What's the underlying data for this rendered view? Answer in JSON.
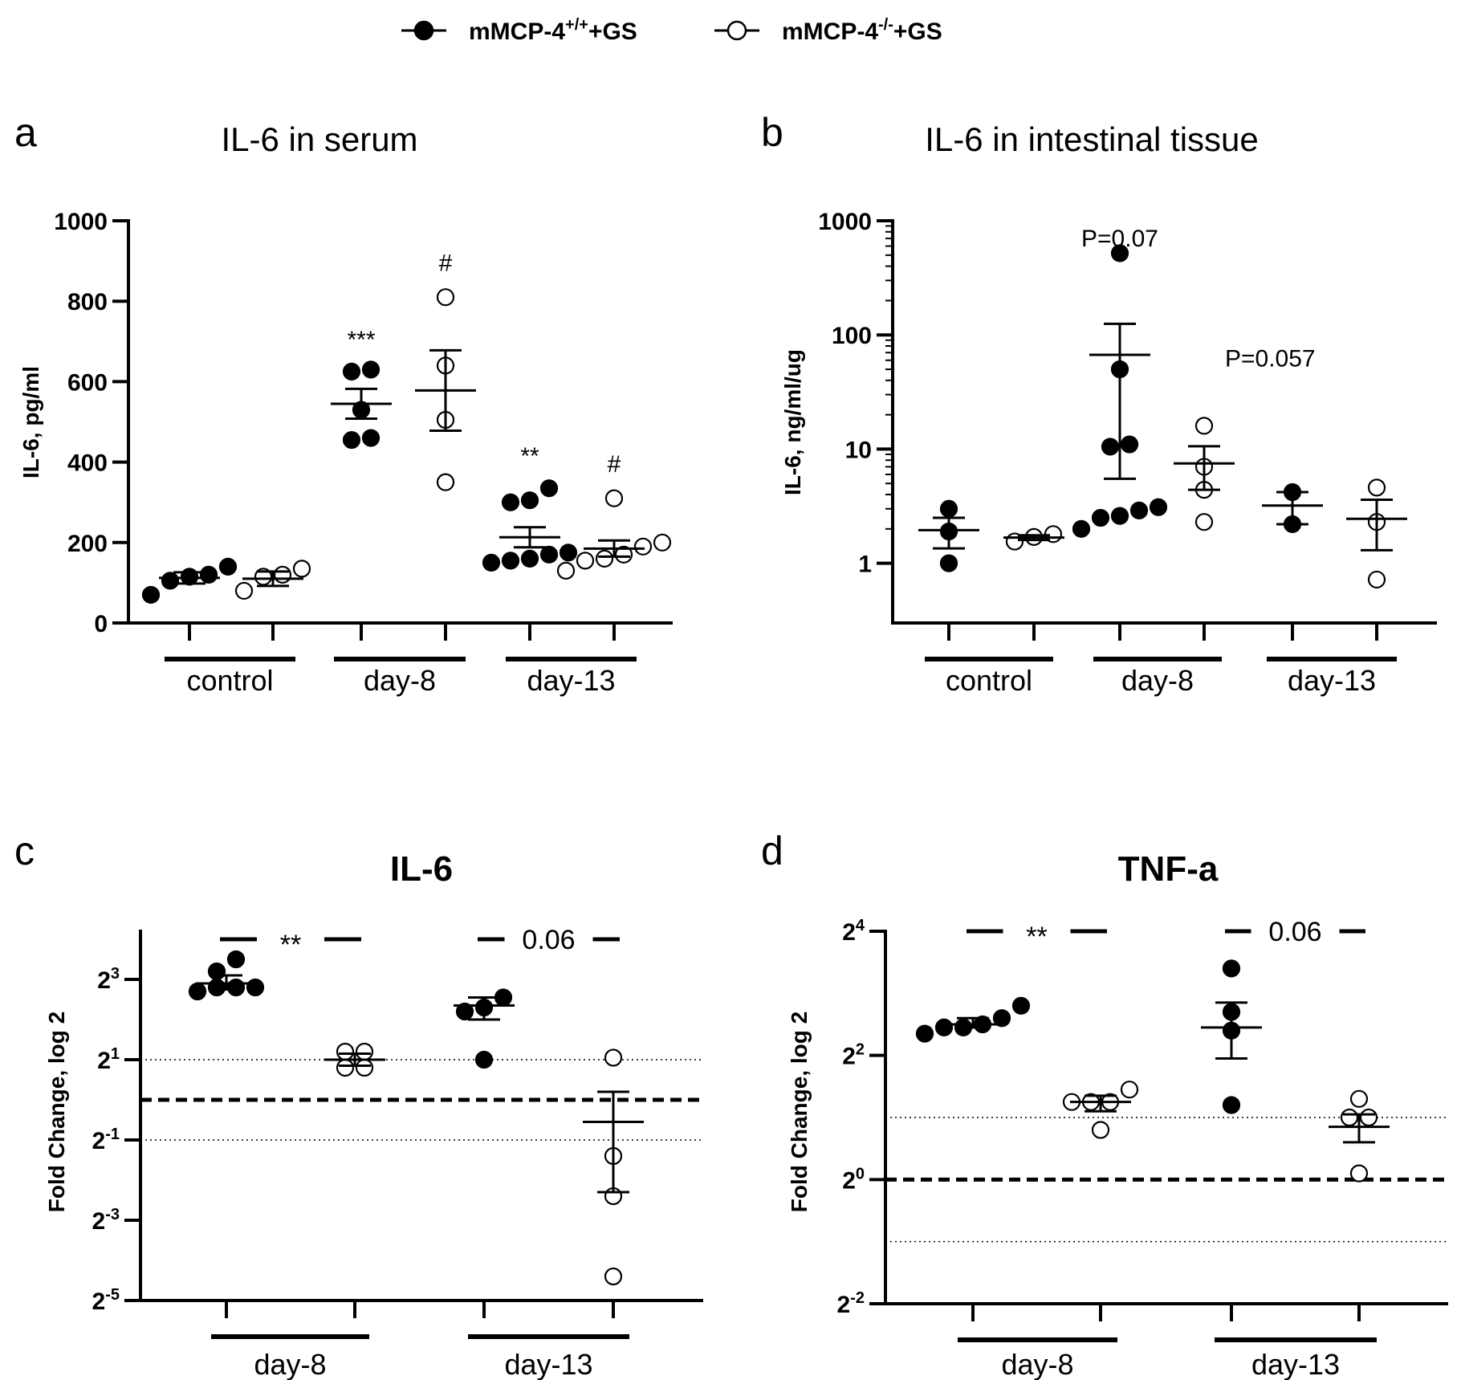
{
  "legend": [
    {
      "name": "mMCP-4",
      "sup": "+/+",
      "suffix": "+GS",
      "marker": "filled"
    },
    {
      "name": "mMCP-4",
      "sup": "-/-",
      "suffix": "+GS",
      "marker": "open"
    }
  ],
  "colors": {
    "ink": "#000000",
    "background": "#ffffff"
  },
  "chart_data": [
    {
      "type": "scatter",
      "panel_letter": "a",
      "title": "IL-6 in serum",
      "title_bold": false,
      "ylabel": "IL-6, pg/ml",
      "yscale": "linear",
      "ylim": [
        0,
        1000
      ],
      "yticks": [
        {
          "v": 0,
          "label": "0"
        },
        {
          "v": 200,
          "label": "200"
        },
        {
          "v": 400,
          "label": "400"
        },
        {
          "v": 600,
          "label": "600"
        },
        {
          "v": 800,
          "label": "800"
        },
        {
          "v": 1000,
          "label": "1000"
        }
      ],
      "groups": [
        "control",
        "day-8",
        "day-13"
      ],
      "series": [
        {
          "name": "mMCP-4+/+ +GS",
          "marker": "filled",
          "columns": [
            {
              "group": "control",
              "points": [
                70,
                105,
                115,
                120,
                140
              ],
              "mean": 112,
              "sem_low": 98,
              "sem_high": 126
            },
            {
              "group": "day-8",
              "points": [
                455,
                460,
                530,
                625,
                630
              ],
              "mean": 545,
              "sem_low": 508,
              "sem_high": 582
            },
            {
              "group": "day-13",
              "points": [
                150,
                155,
                160,
                170,
                175,
                300,
                305,
                335
              ],
              "mean": 213,
              "sem_low": 188,
              "sem_high": 238
            }
          ]
        },
        {
          "name": "mMCP-4-/- +GS",
          "marker": "open",
          "columns": [
            {
              "group": "control",
              "points": [
                80,
                115,
                120,
                135
              ],
              "mean": 110,
              "sem_low": 92,
              "sem_high": 128
            },
            {
              "group": "day-8",
              "points": [
                350,
                505,
                640,
                810
              ],
              "mean": 578,
              "sem_low": 478,
              "sem_high": 678
            },
            {
              "group": "day-13",
              "points": [
                130,
                155,
                160,
                170,
                190,
                200,
                310
              ],
              "mean": 185,
              "sem_low": 165,
              "sem_high": 205
            }
          ]
        }
      ],
      "annotations": [
        {
          "text": "***",
          "group": "day-8",
          "series": 0,
          "value": 705
        },
        {
          "text": "#",
          "group": "day-8",
          "series": 1,
          "value": 895
        },
        {
          "text": "**",
          "group": "day-13",
          "series": 0,
          "value": 415
        },
        {
          "text": "#",
          "group": "day-13",
          "series": 1,
          "value": 395
        }
      ],
      "brackets": []
    },
    {
      "type": "scatter",
      "panel_letter": "b",
      "title": "IL-6 in intestinal tissue",
      "title_bold": false,
      "ylabel": "IL-6, ng/ml/ug",
      "yscale": "log10",
      "ylim": [
        0.3,
        1000
      ],
      "yticks": [
        {
          "v": 1,
          "label": "1"
        },
        {
          "v": 10,
          "label": "10"
        },
        {
          "v": 100,
          "label": "100"
        },
        {
          "v": 1000,
          "label": "1000"
        }
      ],
      "groups": [
        "control",
        "day-8",
        "day-13"
      ],
      "series": [
        {
          "name": "mMCP-4+/+ +GS",
          "marker": "filled",
          "columns": [
            {
              "group": "control",
              "points": [
                1.0,
                1.9,
                3.0
              ],
              "mean": 1.95,
              "sem_low": 1.35,
              "sem_high": 2.5
            },
            {
              "group": "day-8",
              "points": [
                2.0,
                2.5,
                2.6,
                2.9,
                3.1,
                10.5,
                11.0,
                50,
                520
              ],
              "mean": 67,
              "sem_low": 5.5,
              "sem_high": 125
            },
            {
              "group": "day-13",
              "points": [
                2.2,
                4.2
              ],
              "mean": 3.2,
              "sem_low": 2.2,
              "sem_high": 4.2
            }
          ]
        },
        {
          "name": "mMCP-4-/- +GS",
          "marker": "open",
          "columns": [
            {
              "group": "control",
              "points": [
                1.55,
                1.7,
                1.8
              ],
              "mean": 1.68,
              "sem_low": 1.6,
              "sem_high": 1.76
            },
            {
              "group": "day-8",
              "points": [
                2.3,
                4.4,
                7.0,
                16.0
              ],
              "mean": 7.5,
              "sem_low": 4.4,
              "sem_high": 10.6
            },
            {
              "group": "day-13",
              "points": [
                0.72,
                2.3,
                4.6
              ],
              "mean": 2.45,
              "sem_low": 1.3,
              "sem_high": 3.6
            }
          ]
        }
      ],
      "annotations": [
        {
          "text": "P=0.07",
          "group": "day-8",
          "series": 0,
          "value": 700
        },
        {
          "text": "P=0.057",
          "group": "day-8",
          "series": 1,
          "value": 62,
          "align": "start",
          "offset": -14
        }
      ],
      "brackets": []
    },
    {
      "type": "scatter",
      "panel_letter": "c",
      "title": "IL-6",
      "title_bold": true,
      "ylabel": "Fold Change, log 2",
      "yscale": "log2",
      "ylim": [
        -5,
        4.2
      ],
      "yticks": [
        {
          "v": -5,
          "label": "2",
          "sup": "-5"
        },
        {
          "v": -3,
          "label": "2",
          "sup": "-3"
        },
        {
          "v": -1,
          "label": "2",
          "sup": "-1"
        },
        {
          "v": 1,
          "label": "2",
          "sup": "1"
        },
        {
          "v": 3,
          "label": "2",
          "sup": "3"
        }
      ],
      "reference_lines": [
        {
          "v": 0,
          "style": "dashed"
        },
        {
          "v": 1,
          "style": "dotted"
        },
        {
          "v": -1,
          "style": "dotted"
        }
      ],
      "groups": [
        "day-8",
        "day-13"
      ],
      "series": [
        {
          "name": "mMCP-4+/+ +GS",
          "marker": "filled",
          "columns": [
            {
              "group": "day-8",
              "points": [
                3.5,
                3.2,
                2.7,
                2.8,
                2.8,
                2.8
              ],
              "mean": 2.9,
              "sem_low": 2.75,
              "sem_high": 3.1
            },
            {
              "group": "day-13",
              "points": [
                2.55,
                2.3,
                2.2,
                1.0
              ],
              "mean": 2.35,
              "sem_low": 2.0,
              "sem_high": 2.55
            },
            "__pad__"
          ]
        },
        {
          "name": "mMCP-4-/- +GS",
          "marker": "open",
          "columns": [
            {
              "group": "day-8",
              "points": [
                1.2,
                1.2,
                0.8,
                0.8
              ],
              "mean": 1.0,
              "sem_low": 0.85,
              "sem_high": 1.15
            },
            {
              "group": "day-13",
              "points": [
                1.05,
                -1.4,
                -2.4,
                -4.4
              ],
              "mean": -0.55,
              "sem_low": -2.3,
              "sem_high": 0.2
            },
            "__pad__"
          ]
        }
      ],
      "annotations": [],
      "brackets": [
        {
          "group": "day-8",
          "value": 4.0,
          "label": "**"
        },
        {
          "group": "day-13",
          "value": 4.0,
          "label": "0.06"
        }
      ]
    },
    {
      "type": "scatter",
      "panel_letter": "d",
      "title": "TNF-a",
      "title_bold": true,
      "ylabel": "Fold Change, log 2",
      "yscale": "log2",
      "ylim": [
        -2,
        4
      ],
      "yticks": [
        {
          "v": -2,
          "label": "2",
          "sup": "-2"
        },
        {
          "v": 0,
          "label": "2",
          "sup": "0"
        },
        {
          "v": 2,
          "label": "2",
          "sup": "2"
        },
        {
          "v": 4,
          "label": "2",
          "sup": "4"
        }
      ],
      "reference_lines": [
        {
          "v": 0,
          "style": "dashed"
        },
        {
          "v": 1,
          "style": "dotted"
        },
        {
          "v": -1,
          "style": "dotted"
        }
      ],
      "groups": [
        "day-8",
        "day-13"
      ],
      "series": [
        {
          "name": "mMCP-4+/+ +GS",
          "marker": "filled",
          "columns": [
            {
              "group": "day-8",
              "points": [
                2.8,
                2.6,
                2.5,
                2.45,
                2.45,
                2.35
              ],
              "mean": 2.5,
              "sem_low": 2.45,
              "sem_high": 2.6
            },
            {
              "group": "day-13",
              "points": [
                3.4,
                2.7,
                2.4,
                1.2
              ],
              "mean": 2.45,
              "sem_low": 1.95,
              "sem_high": 2.85
            },
            "__pad__"
          ]
        },
        {
          "name": "mMCP-4-/- +GS",
          "marker": "open",
          "columns": [
            {
              "group": "day-8",
              "points": [
                1.45,
                1.25,
                1.25,
                1.25,
                0.8
              ],
              "mean": 1.25,
              "sem_low": 1.1,
              "sem_high": 1.35
            },
            {
              "group": "day-13",
              "points": [
                1.3,
                1.0,
                1.0,
                0.1
              ],
              "mean": 0.85,
              "sem_low": 0.6,
              "sem_high": 1.05
            },
            "__pad__"
          ]
        }
      ],
      "annotations": [],
      "brackets": [
        {
          "group": "day-8",
          "value": 4.0,
          "label": "**"
        },
        {
          "group": "day-13",
          "value": 4.0,
          "label": "0.06"
        }
      ]
    }
  ]
}
